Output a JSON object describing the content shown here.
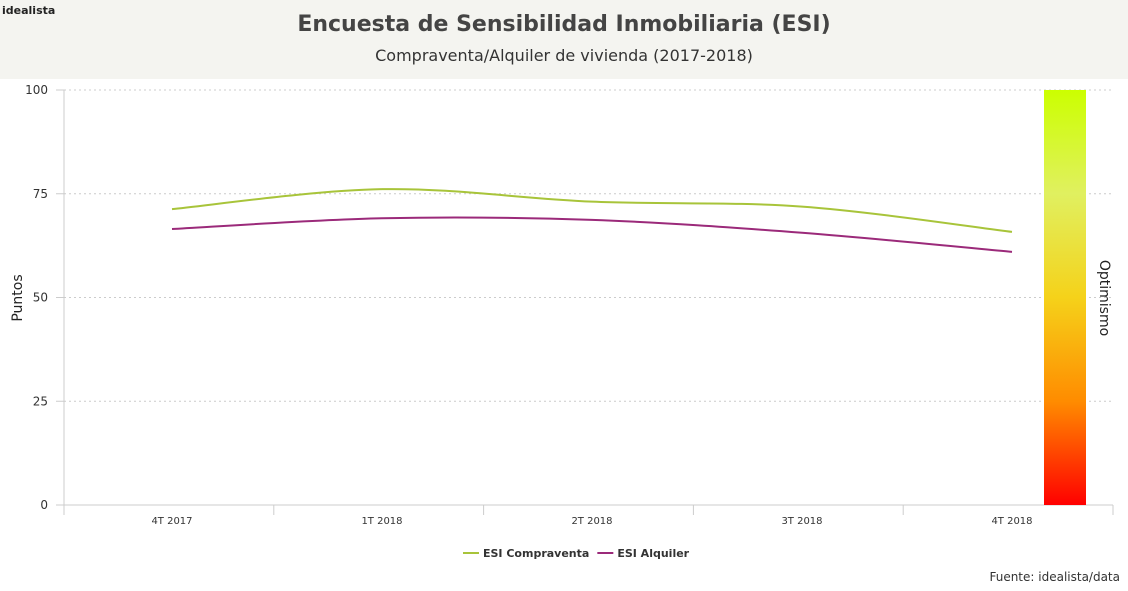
{
  "header": {
    "logo": "idealista",
    "title": "Encuesta de Sensibilidad Inmobiliaria (ESI)",
    "subtitle": "Compraventa/Alquiler de vivienda (2017-2018)"
  },
  "source": "Fuente: idealista/data",
  "chart_data": {
    "type": "line",
    "title": "Encuesta de Sensibilidad Inmobiliaria (ESI)",
    "subtitle": "Compraventa/Alquiler de vivienda (2017-2018)",
    "ylabel": "Puntos",
    "colorbar_label": "Optimismo",
    "categories": [
      "4T 2017",
      "1T 2018",
      "2T 2018",
      "3T 2018",
      "4T 2018"
    ],
    "ylim": [
      0,
      100
    ],
    "yticks": [
      0,
      25,
      50,
      75,
      100
    ],
    "grid": true,
    "legend_position": "bottom",
    "series": [
      {
        "name": "ESI Compraventa",
        "color": "#a8c43a",
        "values": [
          71.3,
          76.1,
          73.1,
          71.9,
          65.8
        ]
      },
      {
        "name": "ESI Alquiler",
        "color": "#9b2a7a",
        "values": [
          66.5,
          69.1,
          68.7,
          65.6,
          61.0
        ]
      }
    ],
    "colorbar_colors": [
      "#ff0000",
      "#ff8c00",
      "#f5d21a",
      "#e0f060",
      "#ccff00"
    ]
  }
}
